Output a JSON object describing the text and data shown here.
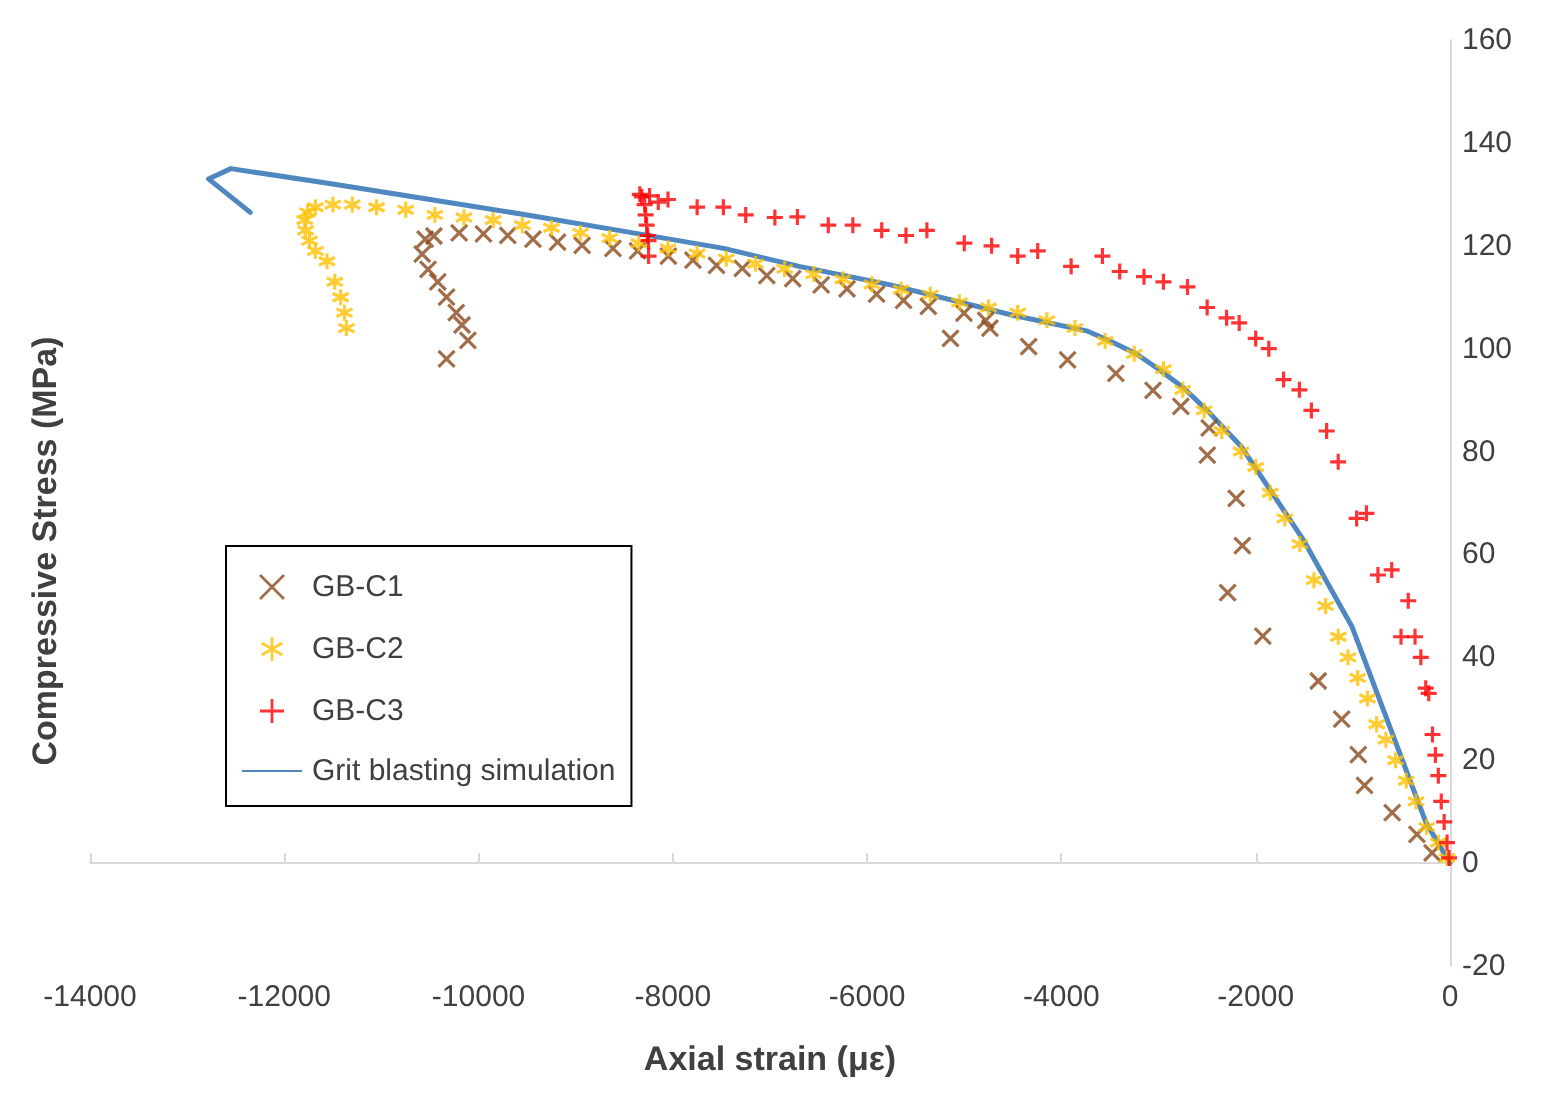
{
  "chart_data": {
    "type": "scatter",
    "xlabel": "Axial strain (με)",
    "ylabel": "Compressive Stress (MPa)",
    "xlim": [
      -14000,
      0
    ],
    "xticks": [
      -14000,
      -12000,
      -10000,
      -8000,
      -6000,
      -4000,
      -2000,
      0
    ],
    "ylim": [
      -20,
      160
    ],
    "yticks": [
      -20,
      0,
      20,
      40,
      60,
      80,
      100,
      120,
      140,
      160
    ],
    "legend": "left",
    "series": [
      {
        "name": "GB-C1",
        "color": "#8b4a1c",
        "marker": "cross",
        "x": [
          -184,
          -340,
          -595,
          -880,
          -944,
          -1115,
          -1356,
          -1927,
          -2289,
          -2137,
          -2201,
          -2498,
          -2479,
          -2771,
          -3057,
          -3440,
          -3937,
          -4337,
          -4736,
          -4780,
          -5003,
          -5142,
          -5370,
          -5625,
          -5903,
          -6207,
          -6473,
          -6766,
          -7033,
          -7285,
          -7551,
          -7793,
          -8046,
          -8364,
          -8617,
          -8934,
          -9187,
          -9440,
          -9700,
          -9950,
          -10200,
          -10460,
          -10550,
          -10580,
          -10520,
          -10420,
          -10330,
          -10230,
          -10170,
          -10110,
          -10330
        ],
        "values": [
          2,
          5.6,
          9.8,
          15.1,
          21.1,
          28,
          35.4,
          44.1,
          52.6,
          61.7,
          70.9,
          79.3,
          84.6,
          88.8,
          91.9,
          95.2,
          97.8,
          100.4,
          104,
          105.5,
          106.9,
          102,
          108.2,
          109.4,
          110.6,
          111.6,
          112.4,
          113.6,
          114.2,
          115.6,
          116.2,
          117.2,
          118,
          119,
          119.5,
          120.1,
          120.7,
          121.3,
          122,
          122.3,
          122.5,
          121.9,
          121.3,
          118.4,
          115.4,
          113,
          110,
          107,
          104.6,
          101.6,
          98
        ]
      },
      {
        "name": "GB-C2",
        "color": "#ffc000",
        "x": [
          -30,
          -120,
          -240,
          -350,
          -450,
          -560,
          -660,
          -755,
          -850,
          -950,
          -1050,
          -1150,
          -1280,
          -1400,
          -1546,
          -1700,
          -1850,
          -2000,
          -2150,
          -2350,
          -2530,
          -2750,
          -2950,
          -3250,
          -3550,
          -3860,
          -4150,
          -4450,
          -4750,
          -5050,
          -5350,
          -5650,
          -5950,
          -6250,
          -6550,
          -6850,
          -7150,
          -7450,
          -7750,
          -8050,
          -8350,
          -8650,
          -8950,
          -9250,
          -9550,
          -9850,
          -10150,
          -10450,
          -10750,
          -11050,
          -11300,
          -11500,
          -11680,
          -11760,
          -11790,
          -11780,
          -11740,
          -11680,
          -11560,
          -11480,
          -11420,
          -11380,
          -11360
        ],
        "values": [
          1,
          4,
          7,
          12,
          16,
          20,
          24,
          27,
          32,
          36,
          40,
          44,
          50,
          55,
          62,
          67,
          72,
          77,
          80,
          84,
          88,
          92,
          96,
          99,
          101.5,
          104,
          105.5,
          107,
          108,
          109,
          110.5,
          111.5,
          112.5,
          113.5,
          114.5,
          115.5,
          116.5,
          117.5,
          118.5,
          119.5,
          120.5,
          121.5,
          122.5,
          123.5,
          124,
          125,
          125.5,
          126,
          127,
          127.5,
          128,
          128,
          127.5,
          126.5,
          125,
          123,
          121,
          119,
          117,
          113,
          110,
          107,
          104
        ]
      },
      {
        "name": "GB-C3",
        "color": "#ff0000",
        "marker": "plus",
        "x": [
          -10,
          -30,
          -60,
          -90,
          -120,
          -150,
          -180,
          -219,
          -250,
          -300,
          -360,
          -430,
          -504,
          -600,
          -742,
          -860,
          -961,
          -1151,
          -1270,
          -1427,
          -1550,
          -1713,
          -1865,
          -2000,
          -2170,
          -2300,
          -2500,
          -2702,
          -2950,
          -3150,
          -3400,
          -3578,
          -3900,
          -4244,
          -4450,
          -4719,
          -5000,
          -5385,
          -5600,
          -5850,
          -6147,
          -6400,
          -6718,
          -6950,
          -7250,
          -7480,
          -7750,
          -8050,
          -8150,
          -8240,
          -8320,
          -8340,
          -8290,
          -8280,
          -8270,
          -8260,
          -8250,
          -8250
        ],
        "values": [
          1,
          4,
          8,
          12,
          17,
          21,
          25,
          33,
          34,
          40,
          44,
          51,
          44,
          57,
          56,
          68,
          67,
          78,
          84,
          88,
          92,
          94,
          100,
          102,
          105,
          106,
          108,
          112,
          113,
          114,
          115,
          118,
          116,
          119,
          118,
          120,
          120.5,
          123,
          122,
          123,
          124,
          124,
          125.6,
          125.5,
          126,
          127.5,
          127.5,
          129,
          128.5,
          129.7,
          129.5,
          130,
          128,
          126,
          124,
          122,
          121,
          118
        ]
      },
      {
        "name": "Grit blasting simulation",
        "type": "line",
        "color": "#4f87c0",
        "marker": "none",
        "line_style": "solid",
        "x": [
          0,
          -250,
          -630,
          -1010,
          -1515,
          -2150,
          -2500,
          -2750,
          -3000,
          -3230,
          -3500,
          -3730,
          -4500,
          -5760,
          -6700,
          -7475,
          -8500,
          -9500,
          -10500,
          -11500,
          -12550,
          -12780,
          -12350
        ],
        "values": [
          0,
          8,
          27,
          46,
          63,
          81,
          88,
          92.5,
          96,
          99,
          101.5,
          103.4,
          106.5,
          112.4,
          116,
          119.5,
          122.8,
          126,
          129,
          132,
          135,
          133,
          126.5
        ]
      }
    ]
  }
}
